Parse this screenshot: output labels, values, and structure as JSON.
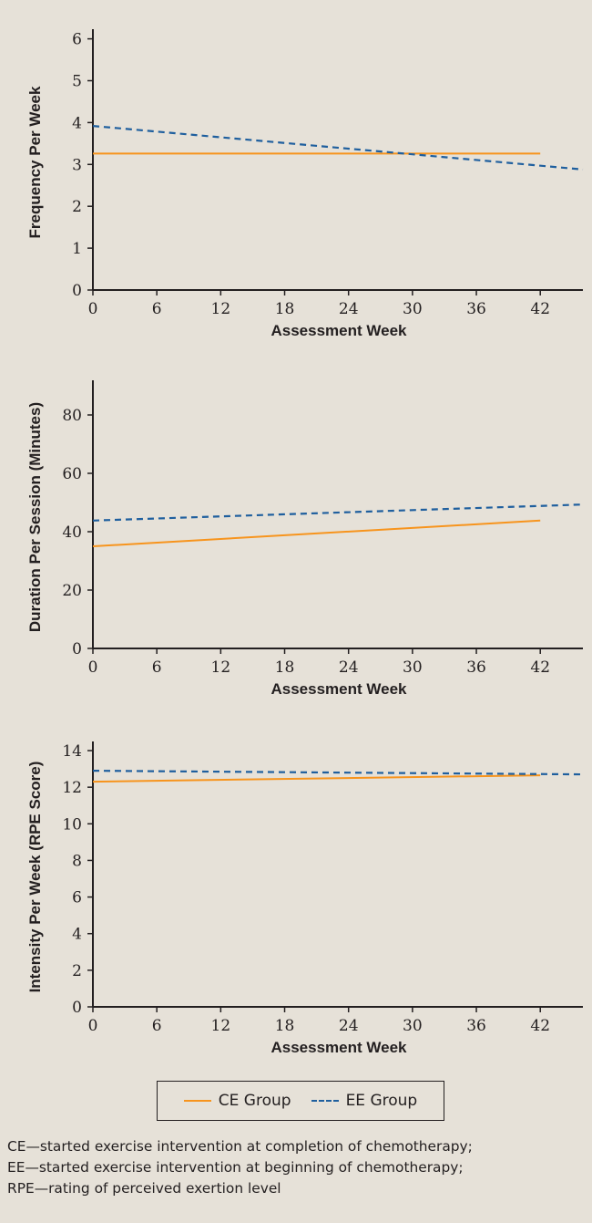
{
  "colors": {
    "ce_group": "#f7941d",
    "ee_group": "#1f5f9e",
    "background": "#e6e1d8",
    "axis": "#231f20"
  },
  "chart_data": [
    {
      "type": "line",
      "xlabel": "Assessment Week",
      "ylabel": "Frequency Per Week",
      "xticks": [
        0,
        6,
        12,
        18,
        24,
        30,
        36,
        42
      ],
      "yticks": [
        0,
        1,
        2,
        3,
        4,
        5,
        6
      ],
      "xlim": [
        0,
        46
      ],
      "ylim": [
        0,
        6.1
      ],
      "series": [
        {
          "name": "CE Group",
          "style": "solid",
          "x": [
            0,
            42
          ],
          "y": [
            3.26,
            3.26
          ]
        },
        {
          "name": "EE Group",
          "style": "dashed",
          "x": [
            0,
            46
          ],
          "y": [
            3.92,
            2.88
          ]
        }
      ]
    },
    {
      "type": "line",
      "xlabel": "Assessment Week",
      "ylabel": "Duration Per Session (Minutes)",
      "xticks": [
        0,
        6,
        12,
        18,
        24,
        30,
        36,
        42
      ],
      "yticks": [
        0,
        20,
        40,
        60,
        80
      ],
      "xlim": [
        0,
        46
      ],
      "ylim": [
        0,
        90
      ],
      "series": [
        {
          "name": "CE Group",
          "style": "solid",
          "x": [
            0,
            42
          ],
          "y": [
            35,
            43.8
          ]
        },
        {
          "name": "EE Group",
          "style": "dashed",
          "x": [
            0,
            46
          ],
          "y": [
            43.8,
            49.3
          ]
        }
      ]
    },
    {
      "type": "line",
      "xlabel": "Assessment Week",
      "ylabel": "Intensity Per Week (RPE Score)",
      "xticks": [
        0,
        6,
        12,
        18,
        24,
        30,
        36,
        42
      ],
      "yticks": [
        0,
        2,
        4,
        6,
        8,
        10,
        12,
        14
      ],
      "xlim": [
        0,
        46
      ],
      "ylim": [
        0,
        14.2
      ],
      "series": [
        {
          "name": "CE Group",
          "style": "solid",
          "x": [
            0,
            42
          ],
          "y": [
            12.3,
            12.65
          ]
        },
        {
          "name": "EE Group",
          "style": "dashed",
          "x": [
            0,
            46
          ],
          "y": [
            12.9,
            12.7
          ]
        }
      ]
    }
  ],
  "legend": {
    "ce_label": "CE Group",
    "ee_label": "EE Group"
  },
  "footnote": [
    "CE—started exercise intervention at completion of chemotherapy;",
    "EE—started exercise intervention at beginning of chemotherapy;",
    "RPE—rating of perceived exertion level"
  ]
}
